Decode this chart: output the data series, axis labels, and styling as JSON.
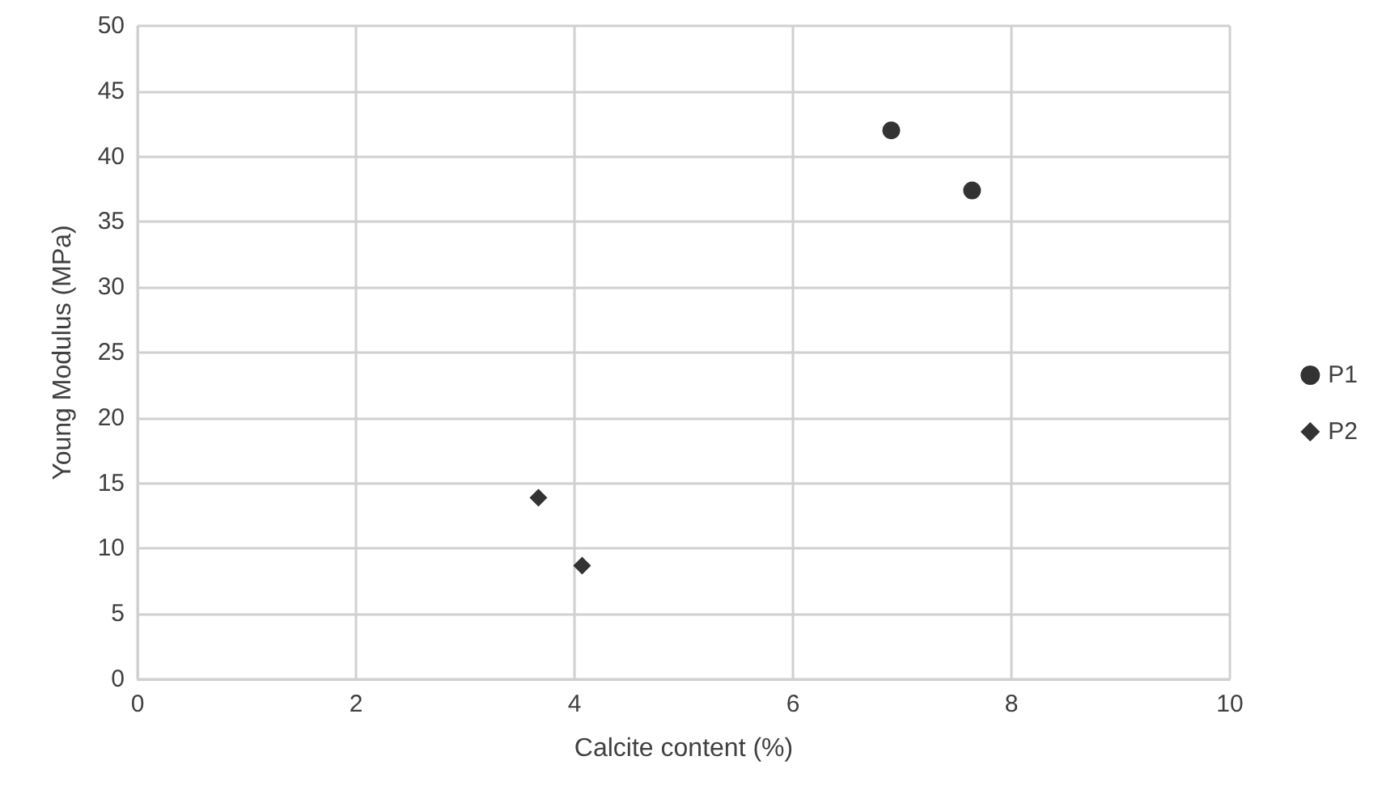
{
  "chart_data": {
    "type": "scatter",
    "xlabel": "Calcite content (%)",
    "ylabel": "Young Modulus (MPa)",
    "xlim": [
      0,
      10
    ],
    "xticks": [
      0,
      2,
      4,
      6,
      8,
      10
    ],
    "ylim": [
      0,
      50
    ],
    "yticks": [
      0,
      5,
      10,
      15,
      20,
      25,
      30,
      35,
      40,
      45,
      50
    ],
    "grid": true,
    "legend": "right",
    "series": [
      {
        "name": "P1",
        "color": "#000000",
        "marker": "circle",
        "x": [
          6.9,
          7.64
        ],
        "values": [
          42,
          37.4
        ]
      },
      {
        "name": "P2",
        "color": "#000000",
        "marker": "diamond",
        "x": [
          3.67,
          4.07
        ],
        "values": [
          13.9,
          8.7
        ]
      }
    ]
  }
}
